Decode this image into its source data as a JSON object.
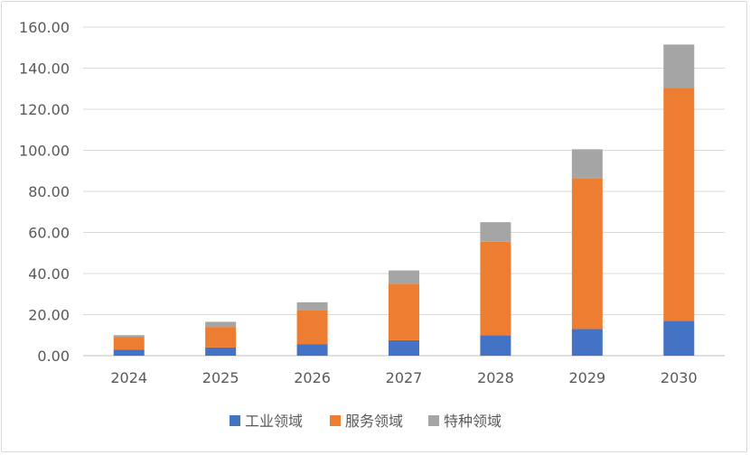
{
  "chart_data": {
    "type": "bar",
    "stacked": true,
    "categories": [
      "2024",
      "2025",
      "2026",
      "2027",
      "2028",
      "2029",
      "2030"
    ],
    "series": [
      {
        "name": "工业领域",
        "color": "#4472C4",
        "values": [
          3.0,
          4.0,
          5.5,
          7.5,
          10.0,
          13.0,
          17.0
        ]
      },
      {
        "name": "服务领域",
        "color": "#ED7D31",
        "values": [
          6.0,
          10.0,
          16.5,
          27.5,
          45.5,
          73.5,
          113.5
        ]
      },
      {
        "name": "特种领域",
        "color": "#A5A5A5",
        "values": [
          1.0,
          2.5,
          4.0,
          6.5,
          9.5,
          14.0,
          21.0
        ]
      }
    ],
    "y_ticks": [
      "0.00",
      "20.00",
      "40.00",
      "60.00",
      "80.00",
      "100.00",
      "120.00",
      "140.00",
      "160.00"
    ],
    "ylim": [
      0,
      160
    ],
    "grid": true,
    "legend_position": "bottom",
    "title": "",
    "xlabel": "",
    "ylabel": ""
  }
}
